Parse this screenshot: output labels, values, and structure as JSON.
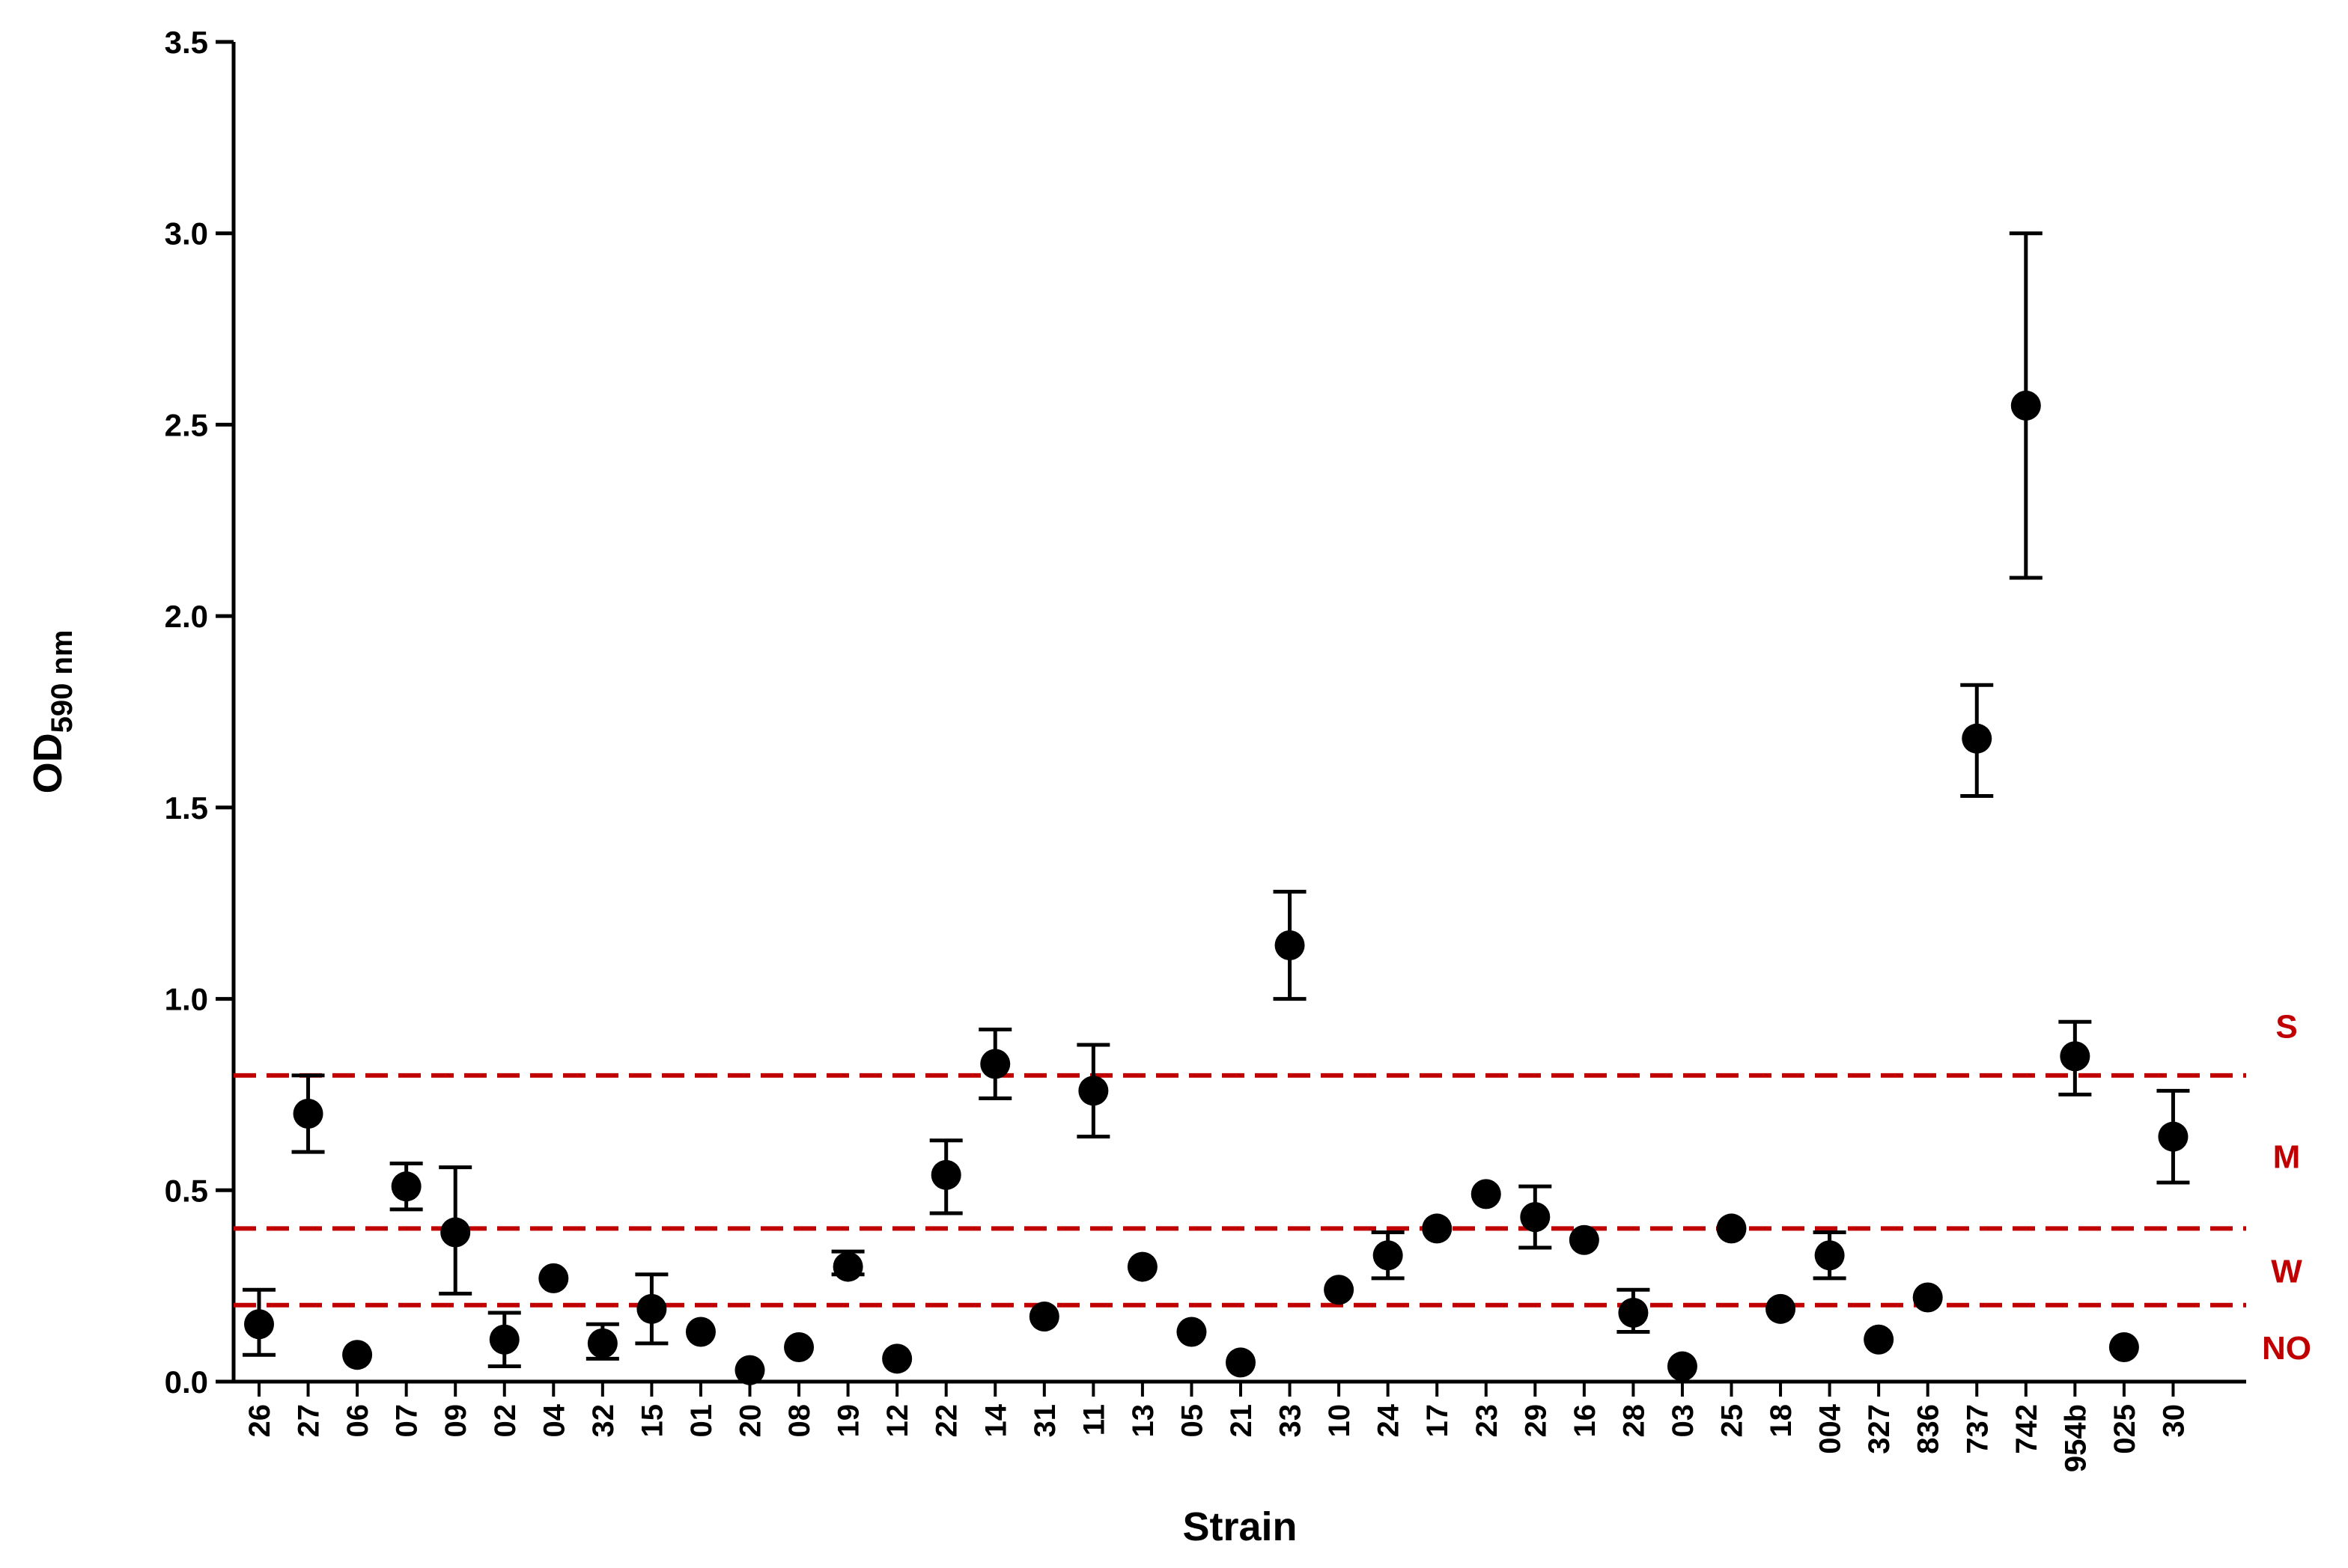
{
  "chart_data": {
    "type": "scatter",
    "xlabel": "Strain",
    "ylabel": {
      "main": "OD",
      "subscript": "590 nm"
    },
    "ylim": [
      0,
      3.5
    ],
    "yticks": [
      "0.0",
      "0.5",
      "1.0",
      "1.5",
      "2.0",
      "2.5",
      "3.0",
      "3.5"
    ],
    "grid": false,
    "categories": [
      "26",
      "27",
      "06",
      "07",
      "09",
      "02",
      "04",
      "32",
      "15",
      "01",
      "20",
      "08",
      "19",
      "12",
      "22",
      "14",
      "31",
      "11",
      "13",
      "05",
      "21",
      "33",
      "10",
      "24",
      "17",
      "23",
      "29",
      "16",
      "28",
      "03",
      "25",
      "18",
      "004",
      "327",
      "836",
      "737",
      "742",
      "954b",
      "025",
      "30"
    ],
    "series": [
      {
        "marker": "filled-circle",
        "values": [
          0.15,
          0.7,
          0.07,
          0.51,
          0.39,
          0.11,
          0.27,
          0.1,
          0.19,
          0.13,
          0.03,
          0.09,
          0.3,
          0.06,
          0.54,
          0.83,
          0.17,
          0.76,
          0.3,
          0.13,
          0.05,
          1.14,
          0.24,
          0.33,
          0.4,
          0.49,
          0.43,
          0.37,
          0.18,
          0.04,
          0.4,
          0.19,
          0.33,
          0.11,
          0.22,
          1.68,
          2.55,
          0.85,
          0.09,
          0.64
        ],
        "error_low": [
          0.07,
          0.6,
          null,
          0.45,
          0.23,
          0.04,
          null,
          0.06,
          0.1,
          null,
          null,
          null,
          0.28,
          null,
          0.44,
          0.74,
          null,
          0.64,
          null,
          null,
          null,
          1.0,
          null,
          0.27,
          null,
          null,
          0.35,
          null,
          0.13,
          null,
          null,
          null,
          0.27,
          null,
          null,
          1.53,
          2.1,
          0.75,
          null,
          0.52
        ],
        "error_high": [
          0.24,
          0.8,
          null,
          0.57,
          0.56,
          0.18,
          null,
          0.15,
          0.28,
          null,
          null,
          null,
          0.34,
          null,
          0.63,
          0.92,
          null,
          0.88,
          null,
          null,
          null,
          1.28,
          null,
          0.39,
          null,
          null,
          0.51,
          null,
          0.24,
          null,
          null,
          null,
          0.39,
          null,
          null,
          1.82,
          3.0,
          0.94,
          null,
          0.76
        ]
      }
    ],
    "thresholds": [
      {
        "value": 0.8,
        "color": "#c00000",
        "style": "dashed"
      },
      {
        "value": 0.4,
        "color": "#c00000",
        "style": "dashed"
      },
      {
        "value": 0.2,
        "color": "#c00000",
        "style": "dashed"
      }
    ],
    "zone_labels": [
      {
        "text": "S",
        "value": 0.93
      },
      {
        "text": "M",
        "value": 0.59
      },
      {
        "text": "W",
        "value": 0.29
      },
      {
        "text": "NO",
        "value": 0.09
      }
    ],
    "colors": {
      "marker": "#000000",
      "threshold": "#c00000",
      "axis": "#000000"
    }
  }
}
